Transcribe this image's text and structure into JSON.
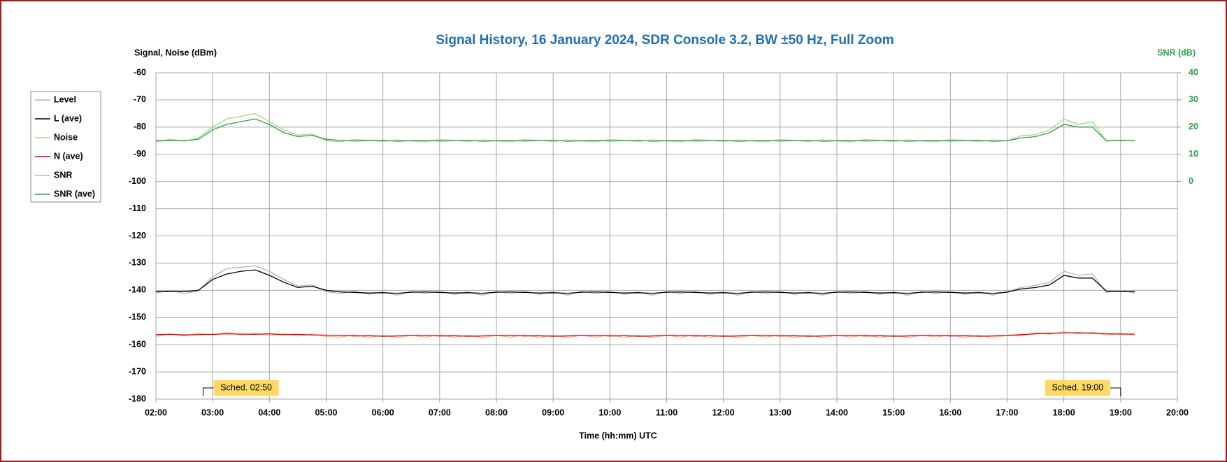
{
  "chart_data": {
    "type": "line",
    "title": "Signal History, 16 January 2024, SDR Console 3.2, BW ±50 Hz, Full Zoom",
    "y_label": "Signal, Noise (dBm)",
    "y2_label": "SNR (dB)",
    "x_label": "Time (hh:mm) UTC",
    "x": [
      "02:00",
      "02:15",
      "02:30",
      "02:45",
      "03:00",
      "03:15",
      "03:30",
      "03:45",
      "04:00",
      "04:15",
      "04:30",
      "04:45",
      "05:00",
      "05:15",
      "05:30",
      "05:45",
      "06:00",
      "06:15",
      "06:30",
      "06:45",
      "07:00",
      "07:15",
      "07:30",
      "07:45",
      "08:00",
      "08:15",
      "08:30",
      "08:45",
      "09:00",
      "09:15",
      "09:30",
      "09:45",
      "10:00",
      "10:15",
      "10:30",
      "10:45",
      "11:00",
      "11:15",
      "11:30",
      "11:45",
      "12:00",
      "12:15",
      "12:30",
      "12:45",
      "13:00",
      "13:15",
      "13:30",
      "13:45",
      "14:00",
      "14:15",
      "14:30",
      "14:45",
      "15:00",
      "15:15",
      "15:30",
      "15:45",
      "16:00",
      "16:15",
      "16:30",
      "16:45",
      "17:00",
      "17:15",
      "17:30",
      "17:45",
      "18:00",
      "18:15",
      "18:30",
      "18:45",
      "19:00",
      "19:15"
    ],
    "xlim": [
      "02:00",
      "20:00"
    ],
    "xticks": [
      "02:00",
      "03:00",
      "04:00",
      "05:00",
      "06:00",
      "07:00",
      "08:00",
      "09:00",
      "10:00",
      "11:00",
      "12:00",
      "13:00",
      "14:00",
      "15:00",
      "16:00",
      "17:00",
      "18:00",
      "19:00",
      "20:00"
    ],
    "ylim": [
      -180,
      -60
    ],
    "yticks": [
      -180,
      -170,
      -160,
      -150,
      -140,
      -130,
      -120,
      -110,
      -100,
      -90,
      -80,
      -70,
      -60
    ],
    "y2lim": [
      -80,
      40
    ],
    "y2ticks": [
      0,
      10,
      20,
      30,
      40
    ],
    "grid": true,
    "legend": "left",
    "series": [
      {
        "name": "Level",
        "color": "#b4b4b4",
        "values": [
          -141,
          -140,
          -141.2,
          -140.2,
          -135,
          -132,
          -131.5,
          -131,
          -133,
          -136,
          -138.5,
          -138,
          -140.5,
          -141.2,
          -140.3,
          -141.5,
          -140.6,
          -141.8,
          -140.4,
          -141.2,
          -140.3,
          -141.5,
          -140.6,
          -141.8,
          -140.4,
          -141.2,
          -140.3,
          -141.5,
          -140.6,
          -141.8,
          -140.4,
          -141.2,
          -140.3,
          -141.5,
          -140.6,
          -141.8,
          -140.4,
          -141.2,
          -140.3,
          -141.5,
          -140.6,
          -141.8,
          -140.4,
          -141.2,
          -140.3,
          -141.5,
          -140.6,
          -141.8,
          -140.4,
          -141.2,
          -140.3,
          -141.5,
          -140.6,
          -141.8,
          -140.4,
          -141.2,
          -140.3,
          -141.5,
          -140.6,
          -141.8,
          -140.4,
          -139,
          -138.2,
          -137,
          -133,
          -134.5,
          -134,
          -140.8,
          -140,
          -141
        ]
      },
      {
        "name": "L (ave)",
        "color": "#000000",
        "values": [
          -140.5,
          -140.5,
          -140.5,
          -140,
          -136,
          -134,
          -133,
          -132.5,
          -134.5,
          -137,
          -139,
          -138.5,
          -140,
          -140.6,
          -140.8,
          -141,
          -140.9,
          -141.1,
          -140.7,
          -140.6,
          -140.8,
          -141,
          -140.9,
          -141.1,
          -140.7,
          -140.6,
          -140.8,
          -141,
          -140.9,
          -141.1,
          -140.7,
          -140.6,
          -140.8,
          -141,
          -140.9,
          -141.1,
          -140.7,
          -140.6,
          -140.8,
          -141,
          -140.9,
          -141.1,
          -140.7,
          -140.6,
          -140.8,
          -141,
          -140.9,
          -141.1,
          -140.7,
          -140.6,
          -140.8,
          -141,
          -140.9,
          -141.1,
          -140.7,
          -140.6,
          -140.8,
          -141,
          -140.9,
          -141.1,
          -140.7,
          -139.5,
          -139,
          -138,
          -134.5,
          -135.5,
          -135.5,
          -140.3,
          -140.5,
          -140.5
        ]
      },
      {
        "name": "Noise",
        "color": "#f4b183",
        "values": [
          -157,
          -156,
          -156.8,
          -155.8,
          -156.5,
          -155.5,
          -156.4,
          -155.9,
          -156.6,
          -156,
          -156.8,
          -156.1,
          -157,
          -157.2,
          -156.4,
          -157.3,
          -156.5,
          -157.4,
          -156.6,
          -157.2,
          -156.4,
          -157.3,
          -156.5,
          -157.4,
          -156.6,
          -157.2,
          -156.4,
          -157.3,
          -156.5,
          -157.4,
          -156.6,
          -157.2,
          -156.4,
          -157.3,
          -156.5,
          -157.4,
          -156.6,
          -157.2,
          -156.4,
          -157.3,
          -156.5,
          -157.4,
          -156.6,
          -157.2,
          -156.4,
          -157.3,
          -156.5,
          -157.4,
          -156.6,
          -157.2,
          -156.4,
          -157.3,
          -156.5,
          -157.4,
          -156.6,
          -157.2,
          -156.4,
          -157.3,
          -156.5,
          -157.4,
          -156.6,
          -156.8,
          -155.6,
          -156.2,
          -155.2,
          -156,
          -155.4,
          -156.5,
          -155.8,
          -156.6
        ]
      },
      {
        "name": "N (ave)",
        "color": "#e00000",
        "values": [
          -156.3,
          -156.2,
          -156.4,
          -156.3,
          -156.2,
          -156,
          -156.1,
          -156.2,
          -156,
          -156.3,
          -156.2,
          -156.4,
          -156.5,
          -156.6,
          -156.8,
          -156.7,
          -156.9,
          -156.8,
          -156.6,
          -156.6,
          -156.8,
          -156.7,
          -156.9,
          -156.8,
          -156.6,
          -156.6,
          -156.8,
          -156.7,
          -156.9,
          -156.8,
          -156.6,
          -156.6,
          -156.8,
          -156.7,
          -156.9,
          -156.8,
          -156.6,
          -156.6,
          -156.8,
          -156.7,
          -156.9,
          -156.8,
          -156.6,
          -156.6,
          -156.8,
          -156.7,
          -156.9,
          -156.8,
          -156.6,
          -156.6,
          -156.8,
          -156.7,
          -156.9,
          -156.8,
          -156.6,
          -156.6,
          -156.8,
          -156.7,
          -156.9,
          -156.8,
          -156.6,
          -156.3,
          -156,
          -155.8,
          -155.7,
          -155.6,
          -155.8,
          -156,
          -156.1,
          -156.1
        ]
      },
      {
        "name": "SNR",
        "color": "#a9d18e",
        "axis": "y2",
        "values": [
          14.5,
          15.5,
          14.8,
          16,
          20,
          23,
          24,
          25,
          22,
          19,
          17,
          17.5,
          15,
          14.6,
          15.4,
          15.1,
          14.7,
          15.3,
          14.9,
          14.6,
          15.4,
          15.1,
          14.7,
          15.3,
          14.9,
          14.6,
          15.4,
          15.1,
          14.7,
          15.3,
          14.9,
          14.6,
          15.4,
          15.1,
          14.7,
          15.3,
          14.9,
          14.6,
          15.4,
          15.1,
          14.7,
          15.3,
          14.9,
          14.6,
          15.4,
          15.1,
          14.7,
          15.3,
          14.9,
          14.6,
          15.4,
          15.1,
          14.7,
          15.3,
          14.9,
          14.6,
          15.4,
          15.1,
          14.7,
          15.3,
          14.9,
          16.8,
          17.2,
          19,
          23,
          21,
          22,
          14.8,
          15.2,
          14.9
        ]
      },
      {
        "name": "SNR (ave)",
        "color": "#2ca048",
        "axis": "y2",
        "values": [
          15,
          15,
          15,
          15.5,
          19,
          21,
          22,
          23,
          21,
          18,
          16.5,
          17,
          15.5,
          15.1,
          14.9,
          15,
          15.2,
          14.8,
          15,
          15.1,
          14.9,
          15,
          15.2,
          14.8,
          15,
          15.1,
          14.9,
          15,
          15.2,
          14.8,
          15,
          15.1,
          14.9,
          15,
          15.2,
          14.8,
          15,
          15.1,
          14.9,
          15,
          15.2,
          14.8,
          15,
          15.1,
          14.9,
          15,
          15.2,
          14.8,
          15,
          15.1,
          14.9,
          15,
          15.2,
          14.8,
          15,
          15.1,
          14.9,
          15,
          15.2,
          14.8,
          15,
          16,
          16.5,
          18,
          21,
          20,
          20,
          15,
          15,
          15
        ]
      }
    ],
    "annotations": [
      {
        "text": "Sched. 02:50",
        "x": "02:50"
      },
      {
        "text": "Sched. 19:00",
        "x": "19:00"
      }
    ]
  }
}
